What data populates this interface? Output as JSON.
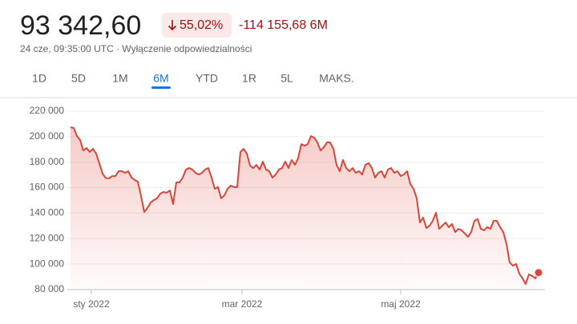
{
  "header": {
    "price": "93 342,60",
    "change_percent": "55,02%",
    "change": "-114 155,68 6M",
    "timestamp": "24 cze, 09:35:00 UTC ·",
    "disclaimer": "Wyłączenie odpowiedzialności"
  },
  "tabs": {
    "items": [
      "1D",
      "5D",
      "1M",
      "6M",
      "YTD",
      "1R",
      "5L",
      "MAKS."
    ],
    "selected": "6M"
  },
  "chart_data": {
    "type": "line",
    "color": "#db4437",
    "grid": true,
    "ylim": [
      80000,
      220000
    ],
    "yticks": [
      {
        "value": 80000,
        "label": "80 000"
      },
      {
        "value": 100000,
        "label": "100 000"
      },
      {
        "value": 120000,
        "label": "120 000"
      },
      {
        "value": 140000,
        "label": "140 000"
      },
      {
        "value": 160000,
        "label": "160 000"
      },
      {
        "value": 180000,
        "label": "180 000"
      },
      {
        "value": 200000,
        "label": "200 000"
      },
      {
        "value": 220000,
        "label": "220 000"
      }
    ],
    "xticks": [
      {
        "value": 6.5,
        "label": "sty 2022"
      },
      {
        "value": 53.5,
        "label": "mar 2022"
      },
      {
        "value": 103,
        "label": "maj 2022"
      }
    ],
    "values": [
      207400,
      206800,
      200500,
      197400,
      189200,
      191100,
      188000,
      190500,
      186700,
      179000,
      171000,
      167600,
      167300,
      169100,
      169100,
      172900,
      172900,
      171600,
      172900,
      167900,
      166000,
      164700,
      153400,
      140900,
      144100,
      148400,
      150300,
      151600,
      155300,
      156600,
      156000,
      157800,
      147200,
      164100,
      164100,
      167900,
      174200,
      175400,
      174200,
      171600,
      170300,
      171600,
      174200,
      175400,
      167900,
      159100,
      160400,
      151600,
      154000,
      159100,
      161600,
      160400,
      160400,
      188000,
      190500,
      186700,
      177300,
      175400,
      177900,
      174200,
      180400,
      174200,
      172900,
      167900,
      170300,
      174200,
      175400,
      180400,
      175400,
      181700,
      177900,
      183000,
      194200,
      192900,
      194200,
      200500,
      199300,
      195500,
      189200,
      191700,
      195500,
      195500,
      190500,
      177900,
      172900,
      181700,
      175400,
      172900,
      175400,
      171600,
      172900,
      170300,
      178000,
      179300,
      175400,
      167900,
      171600,
      172900,
      167900,
      174200,
      175400,
      171600,
      172900,
      169100,
      170300,
      172900,
      162900,
      159100,
      151600,
      132700,
      136500,
      128300,
      130200,
      134000,
      140300,
      127700,
      130200,
      132700,
      129000,
      131500,
      125200,
      127700,
      126500,
      124000,
      121400,
      125200,
      134000,
      135300,
      127700,
      126500,
      129000,
      127700,
      134000,
      134000,
      129000,
      125200,
      115800,
      101300,
      98800,
      100100,
      92600,
      88800,
      84400,
      91900,
      90700,
      88800,
      93342.6
    ]
  }
}
